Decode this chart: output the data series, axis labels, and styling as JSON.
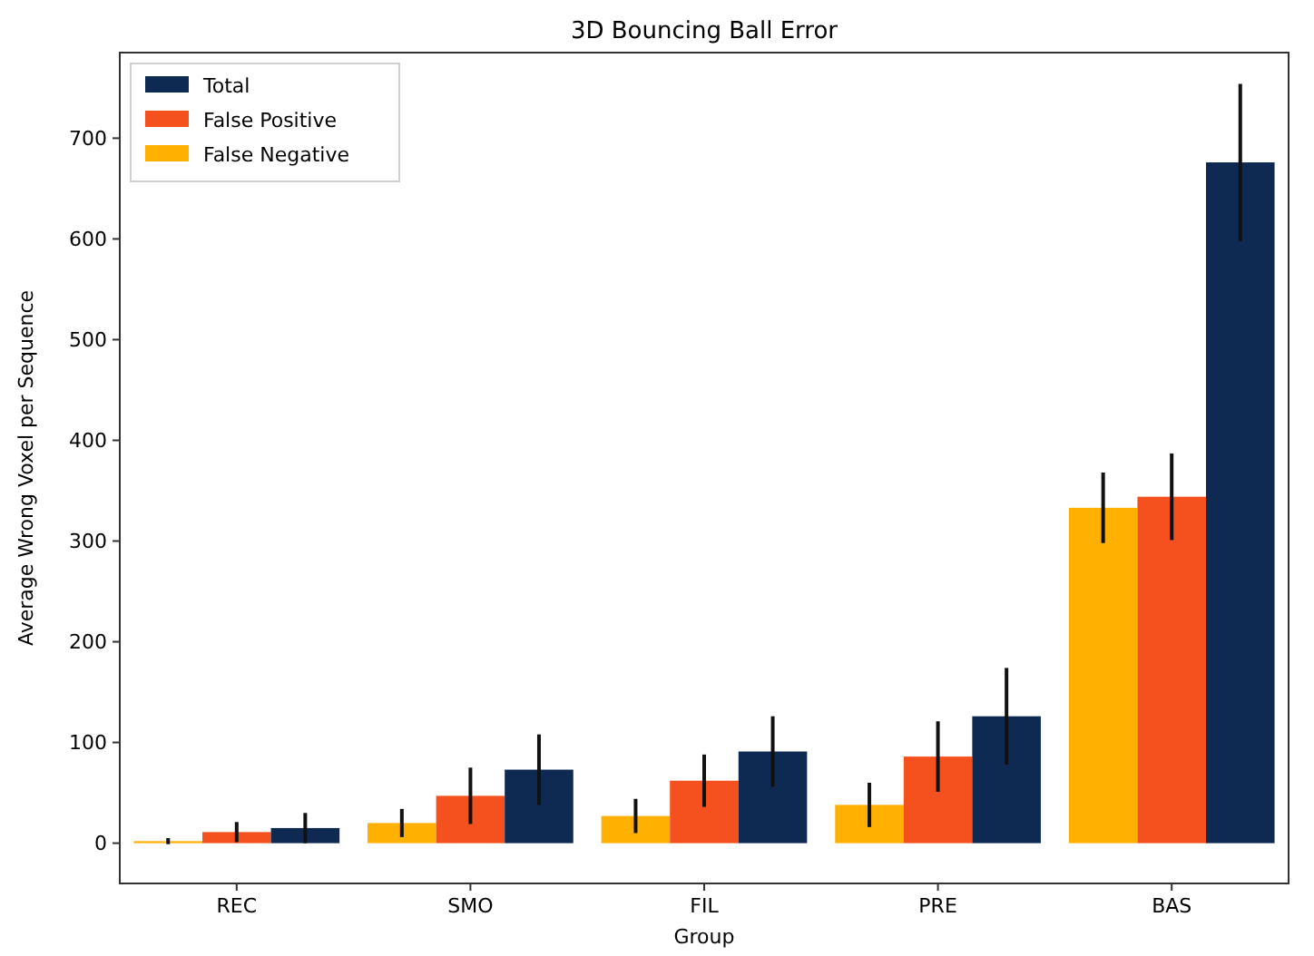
{
  "chart_data": {
    "type": "bar",
    "title": "3D Bouncing Ball Error",
    "xlabel": "Group",
    "ylabel": "Average Wrong Voxel per Sequence",
    "categories": [
      "REC",
      "SMO",
      "FIL",
      "PRE",
      "BAS"
    ],
    "series": [
      {
        "name": "False Negative",
        "color": "#ffb000",
        "values": [
          2,
          20,
          27,
          38,
          333
        ],
        "errors": [
          3,
          14,
          17,
          22,
          35
        ]
      },
      {
        "name": "False Positive",
        "color": "#f4511e",
        "values": [
          11,
          47,
          62,
          86,
          344
        ],
        "errors": [
          10,
          28,
          26,
          35,
          43
        ]
      },
      {
        "name": "Total",
        "color": "#0f2a52",
        "values": [
          15,
          73,
          91,
          126,
          676
        ],
        "errors": [
          15,
          35,
          35,
          48,
          78
        ]
      }
    ],
    "ylim": [
      -40,
      785
    ],
    "yticks": [
      0,
      100,
      200,
      300,
      400,
      500,
      600,
      700
    ],
    "grid": false,
    "legend": "top left"
  }
}
